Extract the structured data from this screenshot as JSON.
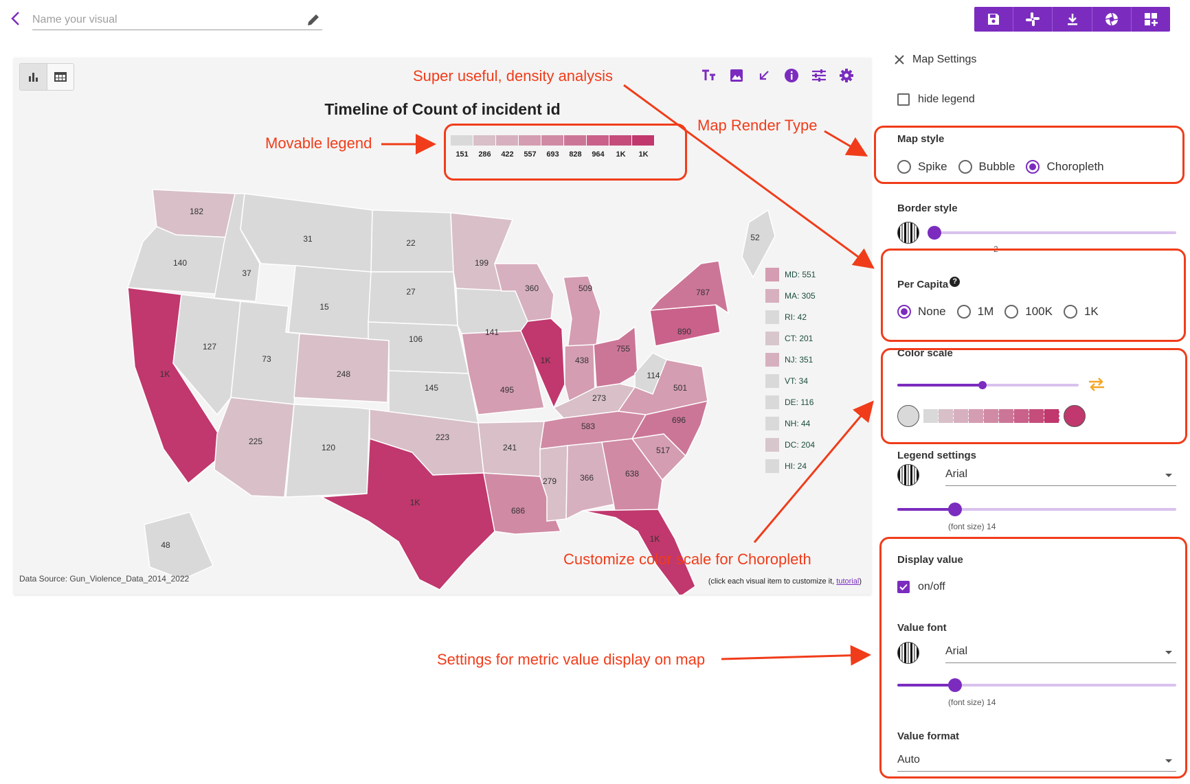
{
  "header": {
    "name_placeholder": "Name your visual",
    "toolbar": [
      "save-icon",
      "slack-icon",
      "download-icon",
      "aperture-icon",
      "add-widget-icon"
    ]
  },
  "card": {
    "title": "Timeline of Count of incident id",
    "source": "Data Source: Gun_Violence_Data_2014_2022",
    "hint_prefix": "(click each visual item to customize it, ",
    "hint_link": "tutorial",
    "hint_suffix": ")",
    "scale_labels": [
      "151",
      "286",
      "422",
      "557",
      "693",
      "828",
      "964",
      "1K",
      "1K"
    ],
    "scale_colors": [
      "#d9d9d9",
      "#d8bfc8",
      "#d7b0bf",
      "#d49db1",
      "#d08aa4",
      "#cc7697",
      "#c9618a",
      "#c44d7b",
      "#c0386d"
    ],
    "side_legend": [
      {
        "label": "MD: 551",
        "color": "#d49db1"
      },
      {
        "label": "MA: 305",
        "color": "#d7b0bf"
      },
      {
        "label": "RI: 42",
        "color": "#d9d9d9"
      },
      {
        "label": "CT: 201",
        "color": "#d8c6cd"
      },
      {
        "label": "NJ: 351",
        "color": "#d7b0bf"
      },
      {
        "label": "VT: 34",
        "color": "#d9d9d9"
      },
      {
        "label": "DE: 116",
        "color": "#d9d9d9"
      },
      {
        "label": "NH: 44",
        "color": "#d9d9d9"
      },
      {
        "label": "DC: 204",
        "color": "#d8c6cd"
      },
      {
        "label": "HI: 24",
        "color": "#d9d9d9"
      }
    ],
    "state_values": {
      "WA": "182",
      "OR": "140",
      "CA": "1K",
      "ID": "37",
      "NV": "127",
      "MT": "31",
      "WY": "15",
      "UT": "73",
      "AZ": "225",
      "CO": "248",
      "NM": "120",
      "ND": "22",
      "SD": "27",
      "NE": "106",
      "KS": "145",
      "OK": "223",
      "TX": "1K",
      "MN": "199",
      "IA": "141",
      "MO": "495",
      "AR": "241",
      "LA": "686",
      "WI": "360",
      "IL": "1K",
      "MI": "509",
      "IN": "438",
      "OH": "755",
      "KY": "273",
      "TN": "583",
      "MS": "279",
      "AL": "366",
      "GA": "638",
      "FL": "1K",
      "SC": "517",
      "NC": "696",
      "VA": "501",
      "WV": "114",
      "PA": "890",
      "NY": "787",
      "ME": "52",
      "AK": "48"
    }
  },
  "panel": {
    "title": "Map Settings",
    "hide_legend": "hide legend",
    "map_style_label": "Map style",
    "map_style_options": [
      "Spike",
      "Bubble",
      "Choropleth"
    ],
    "map_style_selected": "Choropleth",
    "border_style_label": "Border style",
    "border_value": "2",
    "per_capita_label": "Per Capita",
    "per_capita_options": [
      "None",
      "1M",
      "100K",
      "1K"
    ],
    "per_capita_selected": "None",
    "color_scale_label": "Color scale",
    "color_scale_start": "#d9d9d9",
    "color_scale_end": "#c0386d",
    "legend_settings_label": "Legend settings",
    "legend_font": "Arial",
    "legend_font_size": "(font size) 14",
    "display_value_label": "Display value",
    "display_value_toggle": "on/off",
    "value_font_label": "Value font",
    "value_font": "Arial",
    "value_font_size": "(font size) 14",
    "value_format_label": "Value format",
    "value_format": "Auto"
  },
  "annotations": {
    "density": "Super useful, density analysis",
    "movable_legend": "Movable legend",
    "render_type": "Map Render Type",
    "color_scale": "Customize color scale for Choropleth",
    "metric_value": "Settings for metric value display on map"
  },
  "colors": {
    "accent": "#7b2cbf",
    "annotation": "#f03c1a",
    "max": "#c0386d"
  }
}
